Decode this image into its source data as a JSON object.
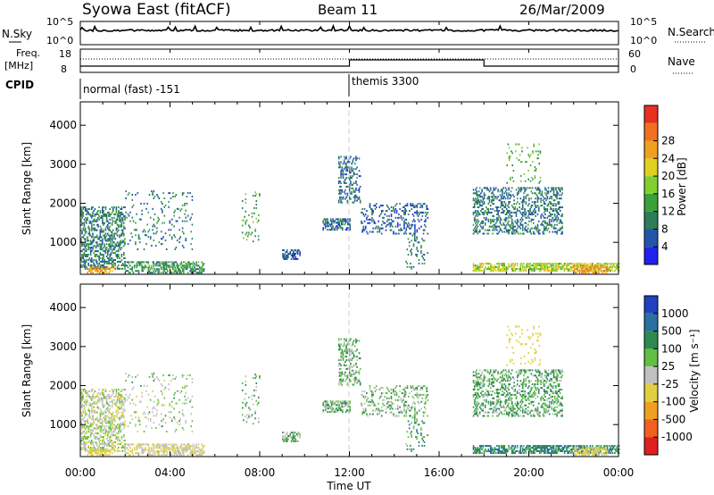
{
  "header": {
    "station": "Syowa East (fitACF)",
    "beam": "Beam 11",
    "date": "26/Mar/2009"
  },
  "noise_panel": {
    "left_label": "N.Sky",
    "right_label": "N.Search",
    "left_ticks": [
      "10^5",
      "10^0"
    ],
    "right_ticks": [
      "10^5",
      "10^0"
    ]
  },
  "freq_panel": {
    "left_label_1": "Freq.",
    "left_label_2": "[MHz]",
    "left_ticks": [
      "18",
      "8"
    ],
    "right_label": "Nave",
    "right_ticks": [
      "60",
      "0"
    ]
  },
  "cpid": {
    "label": "CPID",
    "segments": [
      {
        "name": "normal (fast) -151",
        "start_hour": 0,
        "end_hour": 12
      },
      {
        "name": "themis 3300",
        "start_hour": 12,
        "end_hour": 24
      }
    ]
  },
  "x_axis": {
    "title": "Time UT",
    "ticks": [
      "00:00",
      "04:00",
      "08:00",
      "12:00",
      "16:00",
      "20:00",
      "00:00"
    ],
    "range_hours": [
      0,
      24
    ]
  },
  "power_panel": {
    "ylabel": "Slant Range [km]",
    "yticks": [
      "1000",
      "2000",
      "3000",
      "4000"
    ],
    "ylim": [
      180,
      4600
    ],
    "colorbar_title": "Power [dB]",
    "colorbar_ticks": [
      "4",
      "8",
      "12",
      "16",
      "20",
      "24",
      "28"
    ],
    "colorbar_colors": [
      "#2222ee",
      "#2255aa",
      "#2e7d5a",
      "#3aa03a",
      "#80d030",
      "#e0d020",
      "#f0a020",
      "#f07020",
      "#e83020"
    ]
  },
  "velocity_panel": {
    "ylabel": "Slant Range [km]",
    "yticks": [
      "1000",
      "2000",
      "3000",
      "4000"
    ],
    "ylim": [
      180,
      4600
    ],
    "colorbar_title": "Velocity [m s⁻¹]",
    "colorbar_ticks": [
      "1000",
      "500",
      "100",
      "25",
      "-25",
      "-100",
      "-500",
      "-1000"
    ],
    "colorbar_colors": [
      "#2040c0",
      "#2a70a0",
      "#2e8a50",
      "#60c040",
      "#c0c0c0",
      "#e0d040",
      "#f0a020",
      "#f06020",
      "#e02020"
    ]
  },
  "chart_data": {
    "type": "heatmap",
    "x_units": "hours UT",
    "y_units": "slant range km",
    "echo_regions": [
      {
        "t0": 0.0,
        "t1": 2.0,
        "r0": 300,
        "r1": 1900,
        "density": 0.45,
        "power": 10,
        "velocity": -60
      },
      {
        "t0": 2.0,
        "t1": 5.5,
        "r0": 200,
        "r1": 500,
        "density": 0.5,
        "power": 12,
        "velocity": -100
      },
      {
        "t0": 0.3,
        "t1": 1.5,
        "r0": 200,
        "r1": 380,
        "density": 0.6,
        "power": 26,
        "velocity": -300
      },
      {
        "t0": 2.0,
        "t1": 5.0,
        "r0": 800,
        "r1": 2300,
        "density": 0.08,
        "power": 9,
        "velocity": -40
      },
      {
        "t0": 7.2,
        "t1": 8.0,
        "r0": 1000,
        "r1": 2300,
        "density": 0.08,
        "power": 14,
        "velocity": 0
      },
      {
        "t0": 9.0,
        "t1": 9.8,
        "r0": 550,
        "r1": 800,
        "density": 0.55,
        "power": 6,
        "velocity": 0
      },
      {
        "t0": 10.8,
        "t1": 12.0,
        "r0": 1300,
        "r1": 1600,
        "density": 0.55,
        "power": 8,
        "velocity": 0
      },
      {
        "t0": 11.5,
        "t1": 12.5,
        "r0": 2000,
        "r1": 3200,
        "density": 0.35,
        "power": 8,
        "velocity": 10
      },
      {
        "t0": 12.5,
        "t1": 15.5,
        "r0": 1200,
        "r1": 2000,
        "density": 0.25,
        "power": 7,
        "velocity": 0
      },
      {
        "t0": 14.5,
        "t1": 15.5,
        "r0": 300,
        "r1": 1200,
        "density": 0.12,
        "power": 10,
        "velocity": 50
      },
      {
        "t0": 17.5,
        "t1": 21.5,
        "r0": 1200,
        "r1": 2400,
        "density": 0.35,
        "power": 9,
        "velocity": 30
      },
      {
        "t0": 17.5,
        "t1": 24.0,
        "r0": 250,
        "r1": 450,
        "density": 0.6,
        "power": 20,
        "velocity": 80
      },
      {
        "t0": 19.0,
        "t1": 20.5,
        "r0": 2500,
        "r1": 3500,
        "density": 0.08,
        "power": 14,
        "velocity": -200
      },
      {
        "t0": 22.0,
        "t1": 23.5,
        "r0": 200,
        "r1": 400,
        "density": 0.55,
        "power": 27,
        "velocity": -150
      }
    ]
  }
}
